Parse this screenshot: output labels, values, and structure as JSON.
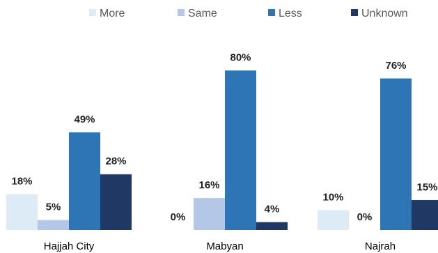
{
  "chart_data": {
    "type": "bar",
    "categories": [
      "Hajjah City",
      "Mabyan",
      "Najrah"
    ],
    "series": [
      {
        "name": "More",
        "values": [
          18,
          0,
          10
        ],
        "labels": [
          "18%",
          "0%",
          "10%"
        ],
        "color": "#DDEBF7"
      },
      {
        "name": "Same",
        "values": [
          5,
          16,
          0
        ],
        "labels": [
          "5%",
          "16%",
          "0%"
        ],
        "color": "#B4C7E7"
      },
      {
        "name": "Less",
        "values": [
          49,
          80,
          76
        ],
        "labels": [
          "49%",
          "80%",
          "76%"
        ],
        "color": "#2E75B6"
      },
      {
        "name": "Unknown",
        "values": [
          28,
          4,
          15
        ],
        "labels": [
          "28%",
          "4%",
          "15%"
        ],
        "color": "#203864"
      }
    ],
    "ylim": [
      0,
      100
    ],
    "legend_position": "top",
    "grid": false
  }
}
